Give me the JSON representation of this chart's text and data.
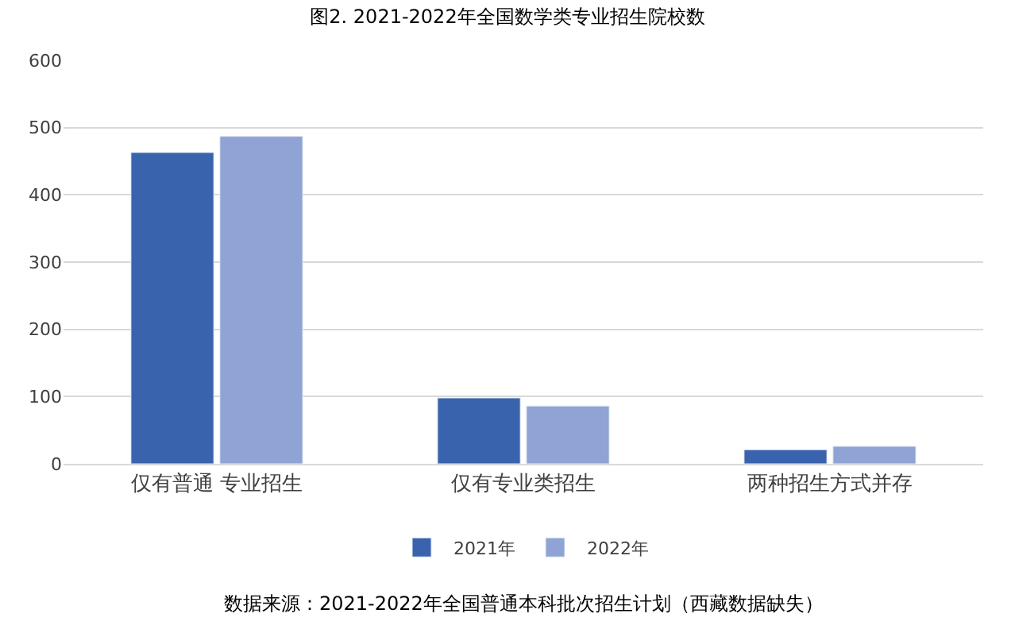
{
  "chart_data": {
    "type": "bar",
    "title": "图2. 2021-2022年全国数学类专业招生院校数",
    "categories": [
      "仅有普通 专业招生",
      "仅有专业类招生",
      "两种招生方式并存"
    ],
    "series": [
      {
        "name": "2021年",
        "color": "#3a63ad",
        "values": [
          463,
          98,
          21
        ]
      },
      {
        "name": "2022年",
        "color": "#8fa3d4",
        "values": [
          487,
          86,
          26
        ]
      }
    ],
    "ylim": [
      0,
      600
    ],
    "yticks": [
      0,
      100,
      200,
      300,
      400,
      500,
      600
    ],
    "grid": "y",
    "legend": "bottom",
    "annotations": [
      "数据来源：2021-2022年全国普通本科批次招生计划（西藏数据缺失）"
    ]
  }
}
